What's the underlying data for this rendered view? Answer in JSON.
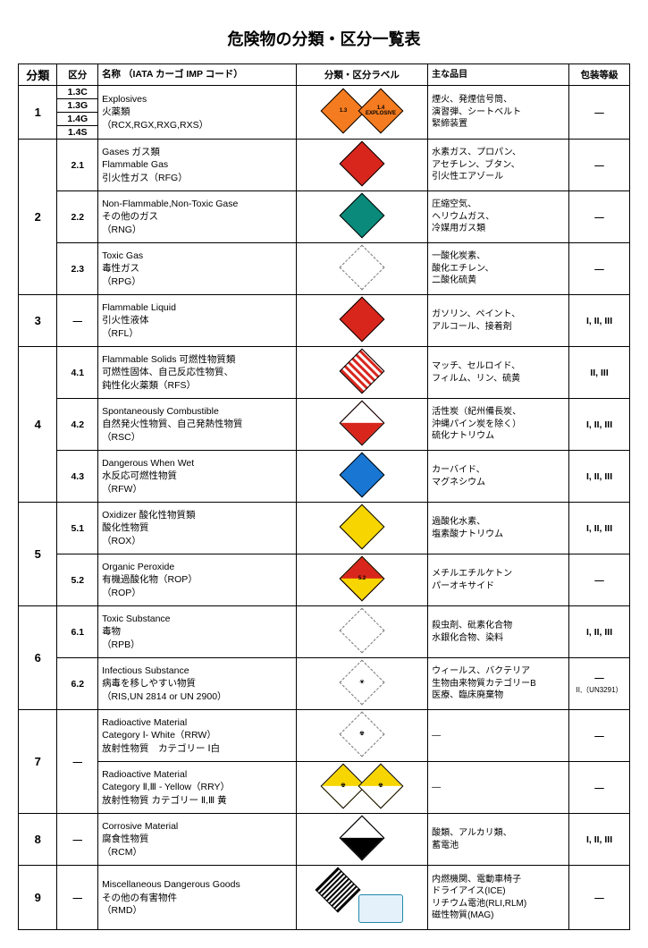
{
  "title": "危険物の分類・区分一覧表",
  "headers": {
    "category": "分類",
    "division": "区分",
    "name": "名称 （IATA カーゴ IMP コード）",
    "label": "分類・区分ラベル",
    "items": "主な品目",
    "packing": "包装等級"
  },
  "rows": [
    {
      "cat": "1",
      "divs": [
        "1.3C",
        "1.3G",
        "1.4G",
        "1.4S"
      ],
      "name": "Explosives\n火薬類\n（RCX,RGX,RXG,RXS）",
      "labels": [
        {
          "bg": "#f47b1f",
          "text": "1.3",
          "txtcolor": "#000"
        },
        {
          "bg": "#f47b1f",
          "text": "1.4\nEXPLOSIVE",
          "txtcolor": "#000"
        }
      ],
      "items": "煙火、発煙信号筒、\n演習弾、シートベルト\n緊締装置",
      "pkg": "—"
    },
    {
      "cat": "2",
      "subrows": [
        {
          "div": "2.1",
          "name": "Gases ガス類\nFlammable Gas\n引火性ガス（RFG）",
          "labels": [
            {
              "bg": "#d9261c",
              "text": ""
            }
          ],
          "items": "水素ガス、プロパン、\nアセチレン、ブタン、\n引火性エアゾール",
          "pkg": "—"
        },
        {
          "div": "2.2",
          "name": "Non-Flammable,Non-Toxic Gase\nその他のガス\n（RNG）",
          "labels": [
            {
              "bg": "#0a8a7a",
              "text": ""
            }
          ],
          "items": "圧縮空気、\nヘリウムガス、\n冷媒用ガス類",
          "pkg": "—"
        },
        {
          "div": "2.3",
          "name": "Toxic Gas\n毒性ガス\n（RPG）",
          "labels": [
            {
              "bg": "#ffffff",
              "text": "",
              "border": "dashed"
            }
          ],
          "items": "一酸化炭素、\n酸化エチレン、\n二酸化硫黄",
          "pkg": "—"
        }
      ]
    },
    {
      "cat": "3",
      "div": "—",
      "name": "Flammable Liquid\n引火性液体\n（RFL）",
      "labels": [
        {
          "bg": "#d9261c",
          "text": ""
        }
      ],
      "items": "ガソリン、ペイント、\nアルコール、接着剤",
      "pkg": "I, II, III"
    },
    {
      "cat": "4",
      "subrows": [
        {
          "div": "4.1",
          "name": "Flammable Solids 可燃性物質類\n可燃性固体、自己反応性物質、\n鈍性化火薬類（RFS）",
          "labels": [
            {
              "class": "stripes",
              "text": ""
            }
          ],
          "items": "マッチ、セルロイド、\nフィルム、リン、硫黄",
          "pkg": "II, III"
        },
        {
          "div": "4.2",
          "name": "Spontaneously Combustible\n自然発火性物質、自己発熱性物質\n（RSC）",
          "labels": [
            {
              "bg": "linear-gradient(to bottom right,#fff 50%,#d9261c 50%)",
              "text": ""
            }
          ],
          "items": "活性炭（紀州備長炭、\n沖縄パイン炭を除く）\n硫化ナトリウム",
          "pkg": "I, II, III"
        },
        {
          "div": "4.3",
          "name": "Dangerous When Wet\n水反応可燃性物質\n（RFW）",
          "labels": [
            {
              "bg": "#1976d2",
              "text": ""
            }
          ],
          "items": "カーバイド、\nマグネシウム",
          "pkg": "I, II, III"
        }
      ]
    },
    {
      "cat": "5",
      "subrows": [
        {
          "div": "5.1",
          "name": "Oxidizer 酸化性物質類\n酸化性物質\n（ROX）",
          "labels": [
            {
              "bg": "#f6d500",
              "text": "",
              "txtcolor": "#000"
            }
          ],
          "items": "過酸化水素、\n塩素酸ナトリウム",
          "pkg": "I, II, III"
        },
        {
          "div": "5.2",
          "name": "Organic Peroxide\n有機過酸化物（ROP）\n（ROP）",
          "labels": [
            {
              "bg": "linear-gradient(to bottom right,#d9261c 50%,#f6d500 50%)",
              "text": "5.2",
              "txtcolor": "#000"
            }
          ],
          "items": "メチルエチルケトン\nパーオキサイド",
          "pkg": "—"
        }
      ]
    },
    {
      "cat": "6",
      "subrows": [
        {
          "div": "6.1",
          "name": "Toxic Substance\n毒物\n（RPB）",
          "labels": [
            {
              "bg": "#ffffff",
              "text": "",
              "border": "dashed"
            }
          ],
          "items": "殺虫剤、砒素化合物\n水銀化合物、染料",
          "pkg": "I, II, III"
        },
        {
          "div": "6.2",
          "name": "Infectious Substance\n病毒を移しやすい物質\n（RIS,UN 2814 or UN 2900）",
          "labels": [
            {
              "bg": "#ffffff",
              "text": "☣",
              "txtcolor": "#000",
              "border": "dashed"
            }
          ],
          "items": "ウィールス、バクテリア\n生物由来物質カテゴリーB\n医療、臨床廃棄物",
          "pkg": "—",
          "pkg_sub": "II,（UN3291）"
        }
      ]
    },
    {
      "cat": "7",
      "div": "—",
      "subrows": [
        {
          "div": "",
          "name": "Radioactive Material\nCategory Ⅰ- White（RRW）\n放射性物質　カテゴリー Ⅰ白",
          "labels": [
            {
              "bg": "#ffffff",
              "text": "☢",
              "txtcolor": "#000",
              "border": "dashed"
            }
          ],
          "items": "—",
          "pkg": "—"
        },
        {
          "div": "",
          "name": "Radioactive Material\nCategory Ⅱ,Ⅲ - Yellow（RRY）\n放射性物質 カテゴリー Ⅱ,Ⅲ 黄",
          "labels": [
            {
              "class": "half-yellow-white",
              "text": "☢",
              "txtcolor": "#000"
            },
            {
              "class": "half-yellow-white",
              "text": "☢",
              "txtcolor": "#000"
            }
          ],
          "items": "—",
          "pkg": "—"
        }
      ]
    },
    {
      "cat": "8",
      "div": "—",
      "name": "Corrosive Material\n腐食性物質\n（RCM）",
      "labels": [
        {
          "class": "half-white-black",
          "text": ""
        }
      ],
      "items": "酸類、アルカリ類、\n蓄電池",
      "pkg": "I, II, III"
    },
    {
      "cat": "9",
      "div": "—",
      "name": "Miscellaneous Dangerous Goods\nその他の有害物件\n（RMD）",
      "labels": [
        {
          "bg": "repeating-linear-gradient(90deg,#000 0 2px,#fff 2px 4px)",
          "text": ""
        },
        {
          "rect": true
        }
      ],
      "items": "内燃機関、電動車椅子\nドライアイス(ICE)\nリチウム電池(RLI,RLM)\n磁性物質(MAG)",
      "pkg": "—"
    }
  ]
}
